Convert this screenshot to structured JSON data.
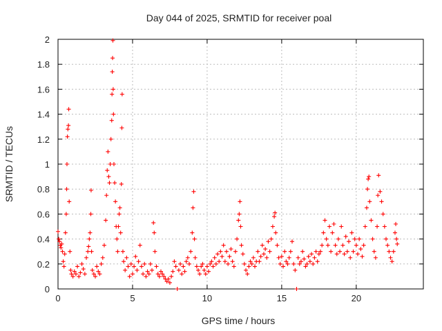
{
  "chart_data": {
    "type": "scatter",
    "title": "Day 044 of 2025, SRMTID for receiver poal",
    "xlabel": "GPS time / hours",
    "ylabel": "SRMTID / TECUs",
    "xlim": [
      0,
      24.5
    ],
    "ylim": [
      0,
      2
    ],
    "xticks": [
      0,
      5,
      10,
      15,
      20
    ],
    "yticks": [
      0,
      0.2,
      0.4,
      0.6,
      0.8,
      1,
      1.2,
      1.4,
      1.6,
      1.8,
      2
    ],
    "xtick_labels": [
      "0",
      "5",
      "10",
      "15",
      "20"
    ],
    "ytick_labels": [
      "0",
      "0.2",
      "0.4",
      "0.6",
      "0.8",
      "1",
      "1.2",
      "1.4",
      "1.6",
      "1.8",
      "2"
    ],
    "grid": true,
    "marker": "+",
    "color": "#ff0000",
    "series": [
      {
        "name": "SRMTID",
        "points": [
          [
            0.0,
            0.46
          ],
          [
            0.05,
            0.4
          ],
          [
            0.1,
            0.38
          ],
          [
            0.15,
            0.35
          ],
          [
            0.2,
            0.33
          ],
          [
            0.25,
            0.36
          ],
          [
            0.3,
            0.3
          ],
          [
            0.35,
            0.22
          ],
          [
            0.4,
            0.18
          ],
          [
            0.45,
            0.28
          ],
          [
            0.5,
            0.45
          ],
          [
            0.55,
            0.6
          ],
          [
            0.58,
            0.8
          ],
          [
            0.6,
            1.0
          ],
          [
            0.63,
            1.22
          ],
          [
            0.66,
            1.28
          ],
          [
            0.7,
            1.31
          ],
          [
            0.72,
            1.44
          ],
          [
            0.75,
            0.7
          ],
          [
            0.8,
            0.3
          ],
          [
            0.85,
            0.15
          ],
          [
            0.9,
            0.12
          ],
          [
            1.0,
            0.1
          ],
          [
            1.1,
            0.14
          ],
          [
            1.2,
            0.12
          ],
          [
            1.3,
            0.18
          ],
          [
            1.4,
            0.1
          ],
          [
            1.5,
            0.13
          ],
          [
            1.6,
            0.2
          ],
          [
            1.7,
            0.16
          ],
          [
            1.8,
            0.12
          ],
          [
            1.9,
            0.25
          ],
          [
            2.0,
            0.3
          ],
          [
            2.05,
            0.34
          ],
          [
            2.1,
            0.4
          ],
          [
            2.15,
            0.45
          ],
          [
            2.2,
            0.6
          ],
          [
            2.22,
            0.79
          ],
          [
            2.25,
            0.3
          ],
          [
            2.3,
            0.15
          ],
          [
            2.4,
            0.12
          ],
          [
            2.5,
            0.1
          ],
          [
            2.6,
            0.18
          ],
          [
            2.7,
            0.14
          ],
          [
            2.8,
            0.12
          ],
          [
            2.9,
            0.2
          ],
          [
            3.0,
            0.25
          ],
          [
            3.1,
            0.35
          ],
          [
            3.2,
            0.55
          ],
          [
            3.25,
            0.75
          ],
          [
            3.3,
            0.95
          ],
          [
            3.35,
            1.1
          ],
          [
            3.4,
            0.9
          ],
          [
            3.45,
            0.85
          ],
          [
            3.5,
            1.0
          ],
          [
            3.55,
            1.2
          ],
          [
            3.6,
            1.35
          ],
          [
            3.62,
            1.56
          ],
          [
            3.64,
            1.74
          ],
          [
            3.66,
            1.85
          ],
          [
            3.68,
            1.99
          ],
          [
            3.7,
            1.6
          ],
          [
            3.72,
            1.4
          ],
          [
            3.75,
            1.0
          ],
          [
            3.8,
            0.85
          ],
          [
            3.85,
            0.7
          ],
          [
            3.9,
            0.5
          ],
          [
            3.95,
            0.4
          ],
          [
            4.0,
            0.3
          ],
          [
            4.05,
            0.5
          ],
          [
            4.1,
            0.6
          ],
          [
            4.15,
            0.65
          ],
          [
            4.2,
            0.45
          ],
          [
            4.25,
            0.84
          ],
          [
            4.28,
            1.29
          ],
          [
            4.3,
            1.56
          ],
          [
            4.35,
            0.3
          ],
          [
            4.4,
            0.22
          ],
          [
            4.5,
            0.15
          ],
          [
            4.6,
            0.25
          ],
          [
            4.7,
            0.18
          ],
          [
            4.8,
            0.1
          ],
          [
            4.9,
            0.2
          ],
          [
            5.0,
            0.12
          ],
          [
            5.1,
            0.18
          ],
          [
            5.2,
            0.26
          ],
          [
            5.3,
            0.15
          ],
          [
            5.4,
            0.22
          ],
          [
            5.5,
            0.35
          ],
          [
            5.6,
            0.18
          ],
          [
            5.7,
            0.12
          ],
          [
            5.8,
            0.2
          ],
          [
            5.9,
            0.1
          ],
          [
            6.0,
            0.14
          ],
          [
            6.1,
            0.12
          ],
          [
            6.2,
            0.2
          ],
          [
            6.3,
            0.15
          ],
          [
            6.4,
            0.53
          ],
          [
            6.45,
            0.45
          ],
          [
            6.5,
            0.3
          ],
          [
            6.6,
            0.18
          ],
          [
            6.7,
            0.12
          ],
          [
            6.8,
            0.1
          ],
          [
            6.9,
            0.14
          ],
          [
            7.0,
            0.12
          ],
          [
            7.1,
            0.1
          ],
          [
            7.2,
            0.08
          ],
          [
            7.3,
            0.06
          ],
          [
            7.4,
            0.08
          ],
          [
            7.5,
            0.05
          ],
          [
            7.6,
            0.1
          ],
          [
            7.7,
            0.14
          ],
          [
            7.8,
            0.22
          ],
          [
            7.9,
            0.18
          ],
          [
            8.0,
            0.0
          ],
          [
            8.1,
            0.15
          ],
          [
            8.2,
            0.2
          ],
          [
            8.3,
            0.12
          ],
          [
            8.4,
            0.18
          ],
          [
            8.5,
            0.14
          ],
          [
            8.6,
            0.22
          ],
          [
            8.7,
            0.25
          ],
          [
            8.8,
            0.2
          ],
          [
            8.9,
            0.3
          ],
          [
            9.0,
            0.45
          ],
          [
            9.05,
            0.65
          ],
          [
            9.1,
            0.78
          ],
          [
            9.15,
            0.4
          ],
          [
            9.2,
            0.25
          ],
          [
            9.3,
            0.18
          ],
          [
            9.4,
            0.15
          ],
          [
            9.5,
            0.12
          ],
          [
            9.6,
            0.18
          ],
          [
            9.7,
            0.2
          ],
          [
            9.8,
            0.15
          ],
          [
            9.9,
            0.12
          ],
          [
            10.0,
            0.18
          ],
          [
            10.1,
            0.14
          ],
          [
            10.2,
            0.2
          ],
          [
            10.3,
            0.22
          ],
          [
            10.4,
            0.18
          ],
          [
            10.5,
            0.25
          ],
          [
            10.6,
            0.2
          ],
          [
            10.7,
            0.28
          ],
          [
            10.8,
            0.22
          ],
          [
            10.9,
            0.3
          ],
          [
            11.0,
            0.26
          ],
          [
            11.1,
            0.35
          ],
          [
            11.2,
            0.22
          ],
          [
            11.3,
            0.3
          ],
          [
            11.4,
            0.2
          ],
          [
            11.5,
            0.26
          ],
          [
            11.6,
            0.32
          ],
          [
            11.7,
            0.22
          ],
          [
            11.8,
            0.18
          ],
          [
            11.9,
            0.3
          ],
          [
            12.0,
            0.4
          ],
          [
            12.1,
            0.55
          ],
          [
            12.15,
            0.6
          ],
          [
            12.2,
            0.7
          ],
          [
            12.25,
            0.5
          ],
          [
            12.3,
            0.35
          ],
          [
            12.4,
            0.28
          ],
          [
            12.5,
            0.2
          ],
          [
            12.6,
            0.15
          ],
          [
            12.7,
            0.12
          ],
          [
            12.8,
            0.18
          ],
          [
            12.9,
            0.22
          ],
          [
            13.0,
            0.2
          ],
          [
            13.1,
            0.25
          ],
          [
            13.2,
            0.18
          ],
          [
            13.3,
            0.22
          ],
          [
            13.4,
            0.3
          ],
          [
            13.5,
            0.22
          ],
          [
            13.6,
            0.26
          ],
          [
            13.7,
            0.35
          ],
          [
            13.8,
            0.28
          ],
          [
            13.9,
            0.32
          ],
          [
            14.0,
            0.25
          ],
          [
            14.1,
            0.38
          ],
          [
            14.2,
            0.3
          ],
          [
            14.3,
            0.4
          ],
          [
            14.4,
            0.5
          ],
          [
            14.5,
            0.58
          ],
          [
            14.55,
            0.61
          ],
          [
            14.6,
            0.45
          ],
          [
            14.7,
            0.35
          ],
          [
            14.8,
            0.25
          ],
          [
            14.9,
            0.2
          ],
          [
            15.0,
            0.26
          ],
          [
            15.1,
            0.18
          ],
          [
            15.2,
            0.3
          ],
          [
            15.3,
            0.22
          ],
          [
            15.4,
            0.2
          ],
          [
            15.5,
            0.25
          ],
          [
            15.6,
            0.3
          ],
          [
            15.7,
            0.38
          ],
          [
            15.8,
            0.2
          ],
          [
            15.9,
            0.15
          ],
          [
            16.0,
            0.0
          ],
          [
            16.1,
            0.25
          ],
          [
            16.2,
            0.2
          ],
          [
            16.3,
            0.22
          ],
          [
            16.4,
            0.3
          ],
          [
            16.5,
            0.24
          ],
          [
            16.6,
            0.18
          ],
          [
            16.7,
            0.2
          ],
          [
            16.8,
            0.26
          ],
          [
            16.9,
            0.22
          ],
          [
            17.0,
            0.28
          ],
          [
            17.1,
            0.2
          ],
          [
            17.2,
            0.25
          ],
          [
            17.3,
            0.3
          ],
          [
            17.4,
            0.22
          ],
          [
            17.5,
            0.28
          ],
          [
            17.6,
            0.3
          ],
          [
            17.7,
            0.35
          ],
          [
            17.8,
            0.45
          ],
          [
            17.9,
            0.55
          ],
          [
            18.0,
            0.4
          ],
          [
            18.1,
            0.35
          ],
          [
            18.2,
            0.5
          ],
          [
            18.3,
            0.3
          ],
          [
            18.4,
            0.45
          ],
          [
            18.5,
            0.52
          ],
          [
            18.6,
            0.35
          ],
          [
            18.7,
            0.28
          ],
          [
            18.8,
            0.4
          ],
          [
            18.9,
            0.3
          ],
          [
            19.0,
            0.5
          ],
          [
            19.1,
            0.35
          ],
          [
            19.2,
            0.28
          ],
          [
            19.3,
            0.42
          ],
          [
            19.4,
            0.3
          ],
          [
            19.5,
            0.38
          ],
          [
            19.6,
            0.25
          ],
          [
            19.7,
            0.45
          ],
          [
            19.8,
            0.3
          ],
          [
            19.9,
            0.4
          ],
          [
            20.0,
            0.35
          ],
          [
            20.1,
            0.28
          ],
          [
            20.2,
            0.4
          ],
          [
            20.3,
            0.32
          ],
          [
            20.4,
            0.26
          ],
          [
            20.5,
            0.35
          ],
          [
            20.6,
            0.5
          ],
          [
            20.7,
            0.65
          ],
          [
            20.75,
            0.8
          ],
          [
            20.8,
            0.88
          ],
          [
            20.85,
            0.9
          ],
          [
            20.9,
            0.7
          ],
          [
            21.0,
            0.55
          ],
          [
            21.1,
            0.4
          ],
          [
            21.2,
            0.3
          ],
          [
            21.3,
            0.25
          ],
          [
            21.4,
            0.5
          ],
          [
            21.45,
            0.75
          ],
          [
            21.5,
            0.91
          ],
          [
            21.6,
            0.78
          ],
          [
            21.7,
            0.7
          ],
          [
            21.8,
            0.6
          ],
          [
            21.9,
            0.5
          ],
          [
            22.0,
            0.4
          ],
          [
            22.1,
            0.35
          ],
          [
            22.2,
            0.3
          ],
          [
            22.3,
            0.25
          ],
          [
            22.4,
            0.22
          ],
          [
            22.5,
            0.3
          ],
          [
            22.6,
            0.45
          ],
          [
            22.65,
            0.52
          ],
          [
            22.7,
            0.4
          ],
          [
            22.75,
            0.36
          ]
        ]
      }
    ]
  }
}
